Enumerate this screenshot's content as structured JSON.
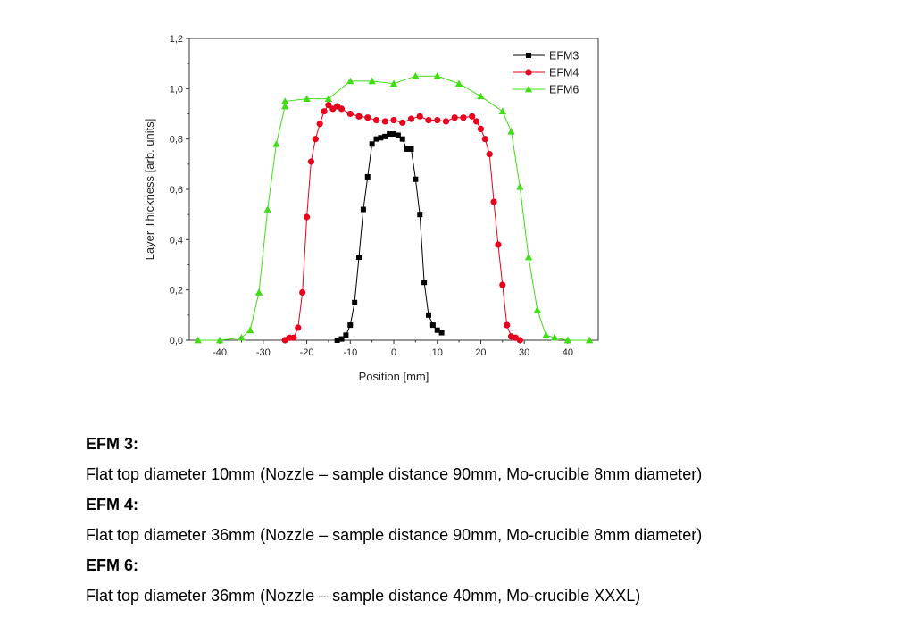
{
  "chart_data": {
    "type": "line",
    "xlabel": "Position [mm]",
    "ylabel": "Layer Thickness [arb. units]",
    "xlim": [
      -47,
      47
    ],
    "ylim": [
      0,
      1.2
    ],
    "x_ticks": [
      "-40",
      "-30",
      "-20",
      "-10",
      "0",
      "10",
      "20",
      "30",
      "40"
    ],
    "y_ticks": [
      "0,0",
      "0,2",
      "0,4",
      "0,6",
      "0,8",
      "1,0",
      "1,2"
    ],
    "grid": false,
    "legend_position": "top-right",
    "series": [
      {
        "name": "EFM3",
        "color": "#000000",
        "marker": "square",
        "points": [
          [
            -13,
            0.0
          ],
          [
            -12,
            0.005
          ],
          [
            -11,
            0.02
          ],
          [
            -10,
            0.06
          ],
          [
            -9,
            0.15
          ],
          [
            -8,
            0.33
          ],
          [
            -7,
            0.52
          ],
          [
            -6,
            0.65
          ],
          [
            -5,
            0.78
          ],
          [
            -4,
            0.8
          ],
          [
            -3,
            0.805
          ],
          [
            -2,
            0.81
          ],
          [
            -1,
            0.82
          ],
          [
            0,
            0.82
          ],
          [
            1,
            0.815
          ],
          [
            2,
            0.8
          ],
          [
            3,
            0.76
          ],
          [
            4,
            0.76
          ],
          [
            5,
            0.64
          ],
          [
            6,
            0.5
          ],
          [
            7,
            0.23
          ],
          [
            8,
            0.1
          ],
          [
            9,
            0.06
          ],
          [
            10,
            0.04
          ],
          [
            11,
            0.03
          ]
        ]
      },
      {
        "name": "EFM4",
        "color": "#e8001c",
        "marker": "circle",
        "points": [
          [
            -25,
            0.0
          ],
          [
            -24,
            0.01
          ],
          [
            -23,
            0.01
          ],
          [
            -22,
            0.05
          ],
          [
            -21,
            0.19
          ],
          [
            -20,
            0.49
          ],
          [
            -19,
            0.71
          ],
          [
            -18,
            0.8
          ],
          [
            -17,
            0.86
          ],
          [
            -16,
            0.91
          ],
          [
            -15,
            0.935
          ],
          [
            -14,
            0.92
          ],
          [
            -13,
            0.93
          ],
          [
            -12,
            0.92
          ],
          [
            -10,
            0.9
          ],
          [
            -8,
            0.89
          ],
          [
            -6,
            0.885
          ],
          [
            -4,
            0.875
          ],
          [
            -2,
            0.87
          ],
          [
            0,
            0.875
          ],
          [
            2,
            0.865
          ],
          [
            4,
            0.88
          ],
          [
            6,
            0.89
          ],
          [
            8,
            0.875
          ],
          [
            10,
            0.875
          ],
          [
            12,
            0.87
          ],
          [
            14,
            0.885
          ],
          [
            16,
            0.885
          ],
          [
            18,
            0.89
          ],
          [
            19,
            0.87
          ],
          [
            20,
            0.84
          ],
          [
            21,
            0.8
          ],
          [
            22,
            0.74
          ],
          [
            23,
            0.55
          ],
          [
            24,
            0.38
          ],
          [
            25,
            0.22
          ],
          [
            26,
            0.06
          ],
          [
            27,
            0.015
          ],
          [
            28,
            0.01
          ],
          [
            29,
            0.0
          ]
        ]
      },
      {
        "name": "EFM6",
        "color": "#40dd15",
        "marker": "triangle",
        "points": [
          [
            -45,
            0.0
          ],
          [
            -40,
            0.0
          ],
          [
            -35,
            0.01
          ],
          [
            -33,
            0.04
          ],
          [
            -31,
            0.19
          ],
          [
            -29,
            0.52
          ],
          [
            -27,
            0.78
          ],
          [
            -25,
            0.93
          ],
          [
            -25,
            0.95
          ],
          [
            -20,
            0.96
          ],
          [
            -15,
            0.96
          ],
          [
            -10,
            1.03
          ],
          [
            -5,
            1.03
          ],
          [
            0,
            1.02
          ],
          [
            5,
            1.05
          ],
          [
            10,
            1.05
          ],
          [
            15,
            1.02
          ],
          [
            20,
            0.97
          ],
          [
            25,
            0.91
          ],
          [
            27,
            0.83
          ],
          [
            29,
            0.61
          ],
          [
            31,
            0.33
          ],
          [
            33,
            0.12
          ],
          [
            35,
            0.02
          ],
          [
            37,
            0.01
          ],
          [
            40,
            0.0
          ],
          [
            45,
            0.0
          ]
        ]
      }
    ]
  },
  "notes": [
    {
      "title": "EFM 3:",
      "text": "Flat top diameter 10mm (Nozzle – sample distance 90mm, Mo-crucible 8mm diameter)"
    },
    {
      "title": "EFM 4:",
      "text": "Flat top diameter 36mm (Nozzle – sample distance 90mm, Mo-crucible 8mm diameter)"
    },
    {
      "title": "EFM 6:",
      "text": "Flat top diameter 36mm (Nozzle – sample distance 40mm, Mo-crucible XXXL)"
    }
  ]
}
